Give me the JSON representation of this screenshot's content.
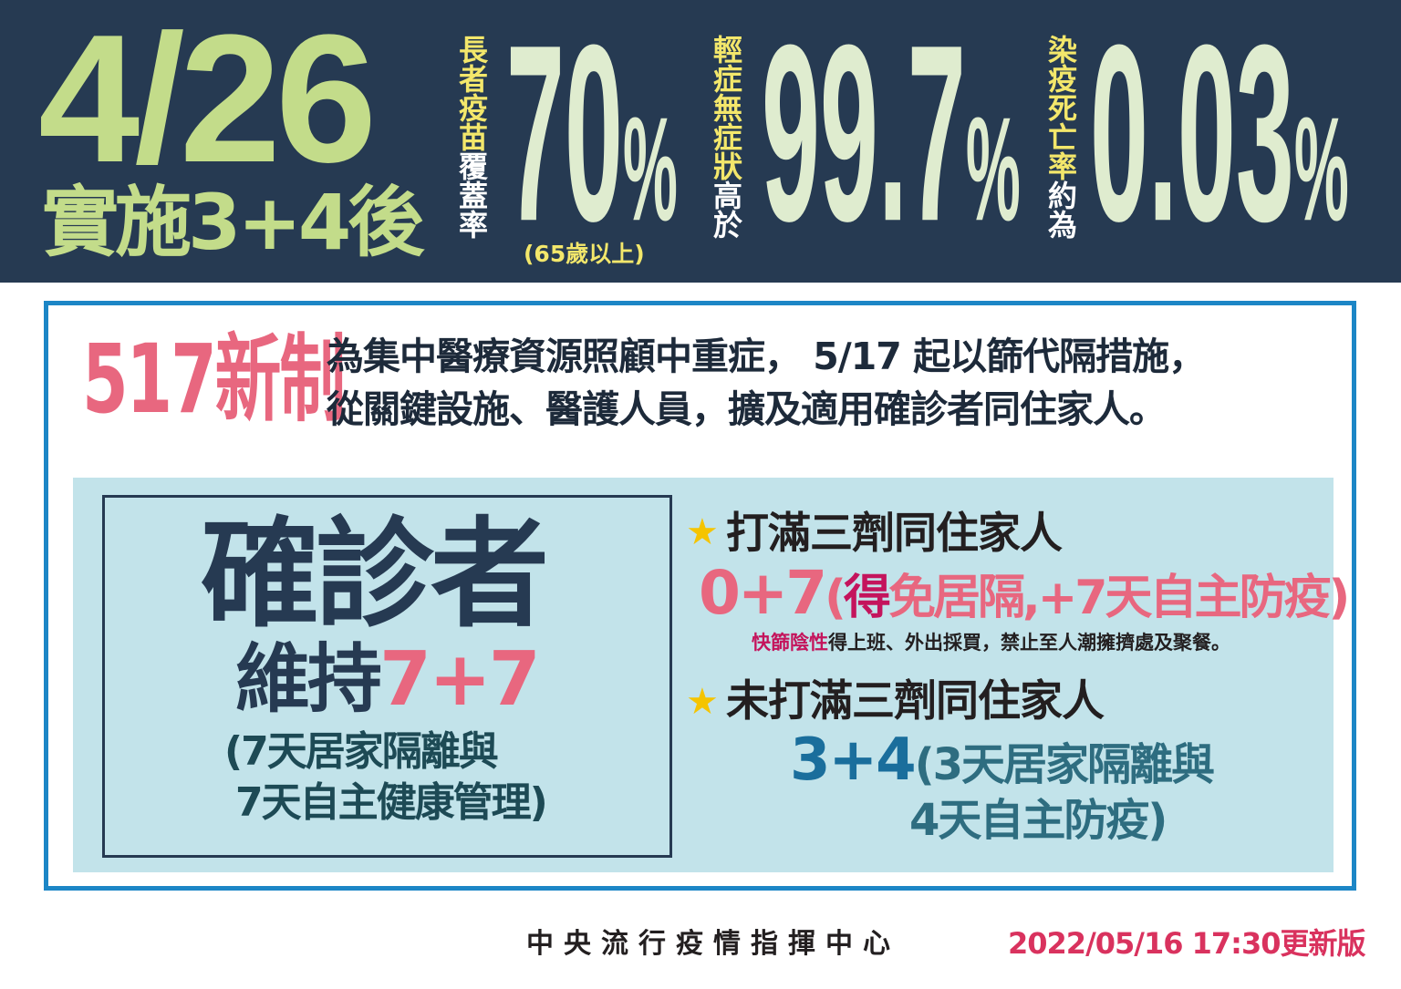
{
  "banner": {
    "date": "4/26",
    "subtitle": "實施3+4後",
    "stat1": {
      "label_highlight": "長者疫苗",
      "label_rest": "覆蓋率",
      "value": "70",
      "unit": "%",
      "note": "(65歲以上)"
    },
    "stat2": {
      "label_highlight": "輕症無症狀",
      "label_rest": "高於",
      "value": "99.7",
      "unit": "%"
    },
    "stat3": {
      "label_highlight": "染疫死亡率",
      "label_rest": "約為",
      "value": "0.03",
      "unit": "%"
    }
  },
  "policy": {
    "tag": "517新制",
    "line1": "為集中醫療資源照顧中重症， 5/17 起以篩代隔措施，",
    "line2": "從關鍵設施、醫護人員，擴及適用確診者同住家人。"
  },
  "confirmed": {
    "title": "確診者",
    "keep": "維持",
    "rule": "7+7",
    "detail1": "(7天居家隔離與",
    "detail2": "7天自主健康管理)"
  },
  "household": {
    "boosted": {
      "heading": "打滿三劑同住家人",
      "rule": "0+7",
      "paren_open": "(",
      "highlight": "得",
      "rest": "免居隔,+7天自主防疫)",
      "note_highlight": "快篩陰性",
      "note_rest": "得上班、外出採買，禁止至人潮擁擠處及聚餐。"
    },
    "not_boosted": {
      "heading": "未打滿三劑同住家人",
      "rule": "3+4",
      "detail1": "(3天居家隔離與",
      "detail2": "4天自主防疫)"
    }
  },
  "footer": {
    "org": "中央流行疫情指揮中心",
    "updated": "2022/05/16 17:30更新版"
  },
  "colors": {
    "navy": "#263a52",
    "green": "#c3dc8a",
    "yellow": "#f3e76b",
    "pink": "#e8677f",
    "panel": "#c2e3ea",
    "border": "#1c86c6",
    "star": "#f5c400"
  }
}
